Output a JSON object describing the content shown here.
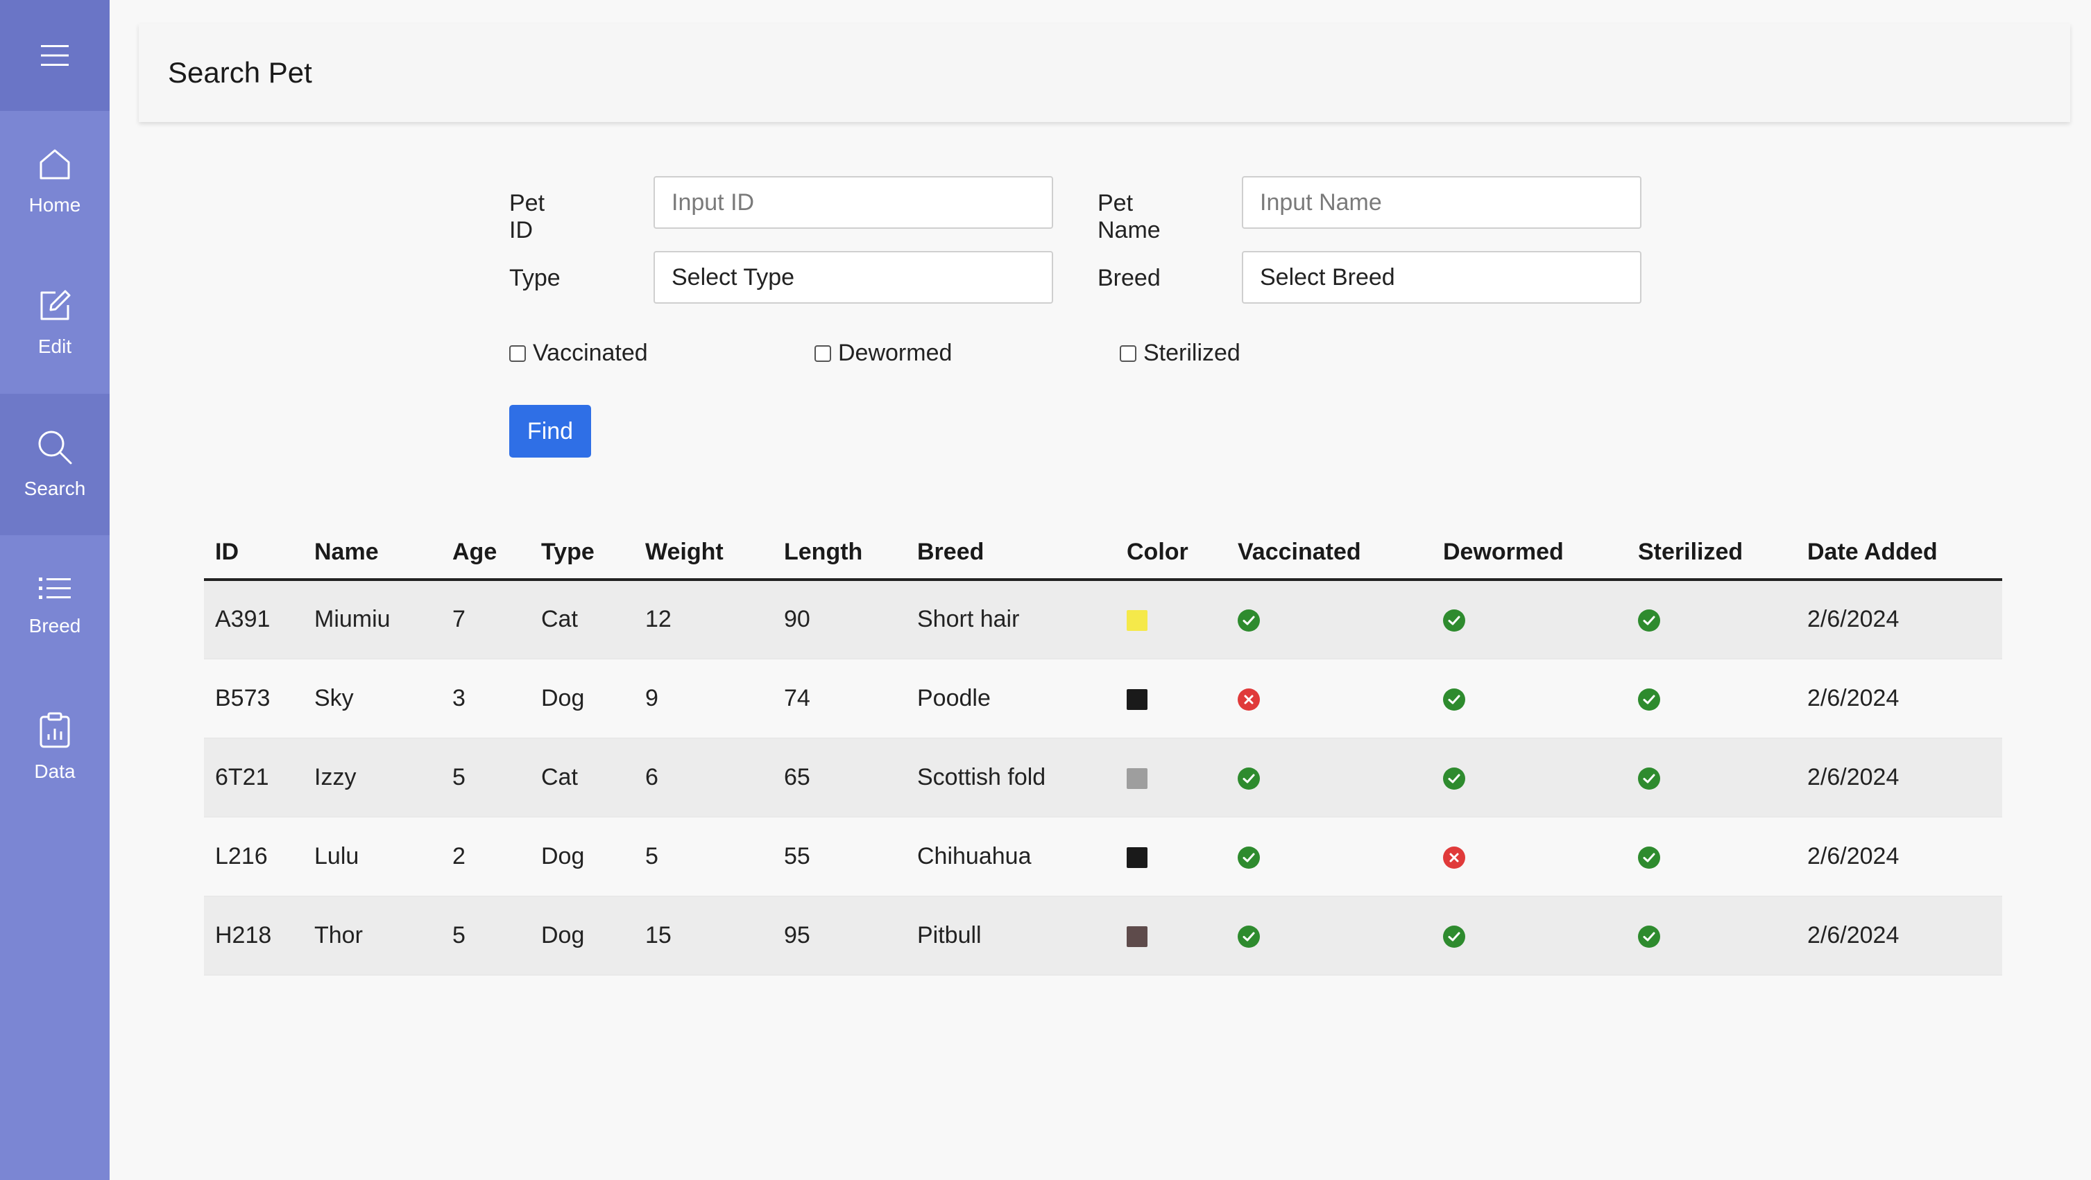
{
  "sidebar": {
    "menu_icon": "hamburger-icon",
    "items": [
      {
        "label": "Home",
        "icon": "home-icon"
      },
      {
        "label": "Edit",
        "icon": "edit-icon"
      },
      {
        "label": "Search",
        "icon": "search-icon",
        "active": true
      },
      {
        "label": "Breed",
        "icon": "list-icon"
      },
      {
        "label": "Data",
        "icon": "clipboard-chart-icon"
      }
    ]
  },
  "header": {
    "title": "Search Pet"
  },
  "form": {
    "pet_id": {
      "label": "Pet ID",
      "placeholder": "Input ID"
    },
    "pet_name": {
      "label": "Pet Name",
      "placeholder": "Input Name"
    },
    "type": {
      "label": "Type",
      "value": "Select Type"
    },
    "breed": {
      "label": "Breed",
      "value": "Select Breed"
    },
    "checkboxes": {
      "vaccinated": "Vaccinated",
      "dewormed": "Dewormed",
      "sterilized": "Sterilized"
    },
    "find_label": "Find"
  },
  "table": {
    "headers": [
      "ID",
      "Name",
      "Age",
      "Type",
      "Weight",
      "Length",
      "Breed",
      "Color",
      "Vaccinated",
      "Dewormed",
      "Sterilized",
      "Date Added"
    ],
    "rows": [
      {
        "id": "A391",
        "name": "Miumiu",
        "age": "7",
        "type": "Cat",
        "weight": "12",
        "length": "90",
        "breed": "Short hair",
        "color": "#f5e94a",
        "vaccinated": true,
        "dewormed": true,
        "sterilized": true,
        "date": "2/6/2024"
      },
      {
        "id": "B573",
        "name": "Sky",
        "age": "3",
        "type": "Dog",
        "weight": "9",
        "length": "74",
        "breed": "Poodle",
        "color": "#1a1a1a",
        "vaccinated": false,
        "dewormed": true,
        "sterilized": true,
        "date": "2/6/2024"
      },
      {
        "id": "6T21",
        "name": "Izzy",
        "age": "5",
        "type": "Cat",
        "weight": "6",
        "length": "65",
        "breed": "Scottish fold",
        "color": "#9e9e9e",
        "vaccinated": true,
        "dewormed": true,
        "sterilized": true,
        "date": "2/6/2024"
      },
      {
        "id": "L216",
        "name": "Lulu",
        "age": "2",
        "type": "Dog",
        "weight": "5",
        "length": "55",
        "breed": "Chihuahua",
        "color": "#1a1a1a",
        "vaccinated": true,
        "dewormed": false,
        "sterilized": true,
        "date": "2/6/2024"
      },
      {
        "id": "H218",
        "name": "Thor",
        "age": "5",
        "type": "Dog",
        "weight": "15",
        "length": "95",
        "breed": "Pitbull",
        "color": "#5e4b4b",
        "vaccinated": true,
        "dewormed": true,
        "sterilized": true,
        "date": "2/6/2024"
      }
    ]
  },
  "colors": {
    "sidebar": "#7b86d3",
    "primary_button": "#2f6fe6",
    "check_ok": "#2e8b2e",
    "check_no": "#e03a3a"
  }
}
